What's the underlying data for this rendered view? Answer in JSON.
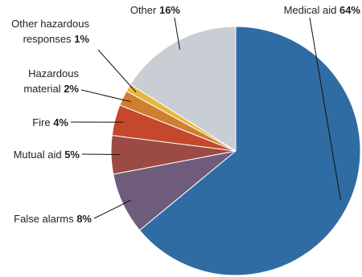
{
  "chart_data": {
    "type": "pie",
    "categories": [
      "Medical aid",
      "False alarms",
      "Mutual aid",
      "Fire",
      "Hazardous material",
      "Other hazardous responses",
      "Other"
    ],
    "values": [
      64,
      8,
      5,
      4,
      2,
      1,
      16
    ],
    "value_labels": [
      "64%",
      "8%",
      "5%",
      "4%",
      "2%",
      "1%",
      "16%"
    ],
    "colors": [
      "#2f6ca3",
      "#6f5c7b",
      "#9c4b44",
      "#c5472c",
      "#cf7f31",
      "#e5b83c",
      "#c9cdd4"
    ]
  }
}
